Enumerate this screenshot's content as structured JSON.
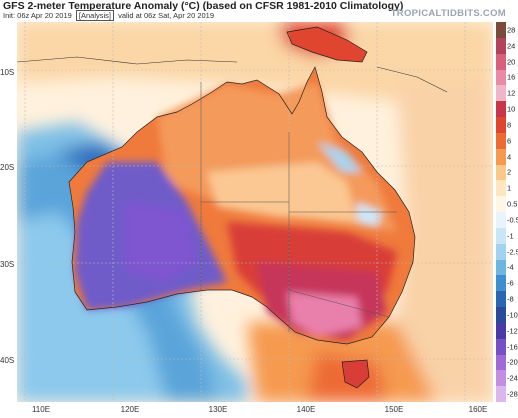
{
  "header": {
    "title": "GFS 2-meter Temperature Anomaly (°C) (based on CFSR 1981-2010 Climatology)",
    "init": "Init: 06z Apr 20 2019",
    "analysis": "[Analysis]",
    "valid": "valid at 06z Sat, Apr 20 2019",
    "brand": "TROPICALTIDBITS.COM"
  },
  "axes": {
    "lat_labels": [
      "10S",
      "20S",
      "30S",
      "40S"
    ],
    "lon_labels": [
      "110E",
      "120E",
      "130E",
      "140E",
      "150E",
      "160E"
    ]
  },
  "colorbar": {
    "labels": [
      "28",
      "24",
      "20",
      "16",
      "12",
      "10",
      "8",
      "6",
      "4",
      "2",
      "1",
      "0.5",
      "-0.5",
      "-1",
      "-2.5",
      "-4",
      "-6",
      "-8",
      "-10",
      "-12",
      "-16",
      "-20",
      "-24",
      "-28"
    ],
    "colors": [
      "#7a4a3a",
      "#b3435a",
      "#d7607f",
      "#e98aa6",
      "#f0b5c8",
      "#c7364a",
      "#e0452f",
      "#ee6a34",
      "#f59a4f",
      "#f9c98a",
      "#fde6c0",
      "#fff6e6",
      "#e8f3fb",
      "#c8e6f5",
      "#a2d3ee",
      "#6fb5e1",
      "#3e8fcf",
      "#2a66b4",
      "#2a4a9a",
      "#4a3aa8",
      "#7650c4",
      "#9f6ad6",
      "#c28fe3",
      "#ddb6ee"
    ]
  }
}
